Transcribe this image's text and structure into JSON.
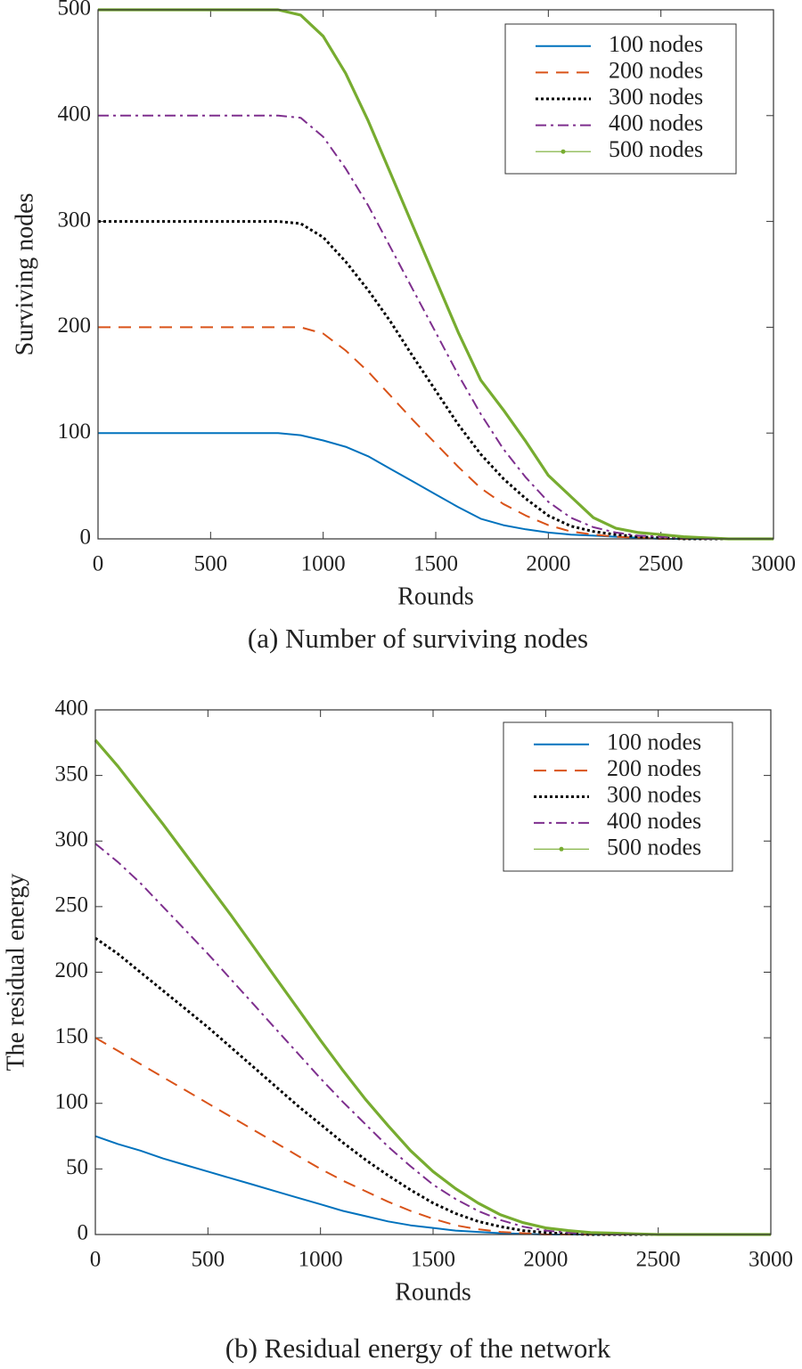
{
  "chart_data": [
    {
      "type": "line",
      "caption": "(a) Number of surviving nodes",
      "xlabel": "Rounds",
      "ylabel": "Surviving nodes",
      "x": [
        0,
        100,
        200,
        300,
        400,
        500,
        600,
        700,
        800,
        900,
        1000,
        1100,
        1200,
        1300,
        1400,
        1500,
        1600,
        1700,
        1800,
        1900,
        2000,
        2100,
        2200,
        2300,
        2400,
        2500,
        2600,
        2700,
        2800,
        2900,
        3000
      ],
      "xlim": [
        0,
        3000
      ],
      "xticks": [
        0,
        500,
        1000,
        1500,
        2000,
        2500,
        3000
      ],
      "ylim": [
        0,
        500
      ],
      "yticks": [
        0,
        100,
        200,
        300,
        400,
        500
      ],
      "legend": "upper right",
      "series": [
        {
          "name": "100 nodes",
          "color": "#0072bd",
          "dash": "solid",
          "values": [
            100,
            100,
            100,
            100,
            100,
            100,
            100,
            100,
            100,
            98,
            93,
            87,
            78,
            66,
            54,
            42,
            30,
            19,
            13,
            9,
            6,
            4,
            3,
            2,
            1,
            0,
            0,
            0,
            0,
            0,
            0
          ]
        },
        {
          "name": "200 nodes",
          "color": "#d95319",
          "dash": "dashed",
          "values": [
            200,
            200,
            200,
            200,
            200,
            200,
            200,
            200,
            200,
            200,
            194,
            178,
            158,
            135,
            112,
            90,
            68,
            48,
            33,
            22,
            13,
            7,
            4,
            2,
            1,
            0,
            0,
            0,
            0,
            0,
            0
          ]
        },
        {
          "name": "300 nodes",
          "color": "#000000",
          "dash": "dotted",
          "values": [
            300,
            300,
            300,
            300,
            300,
            300,
            300,
            300,
            300,
            298,
            285,
            262,
            235,
            205,
            172,
            140,
            108,
            80,
            57,
            38,
            22,
            12,
            7,
            4,
            2,
            1,
            0,
            0,
            0,
            0,
            0
          ]
        },
        {
          "name": "400 nodes",
          "color": "#7e2f8e",
          "dash": "dashdot",
          "values": [
            400,
            400,
            400,
            400,
            400,
            400,
            400,
            400,
            400,
            398,
            380,
            350,
            315,
            275,
            235,
            195,
            155,
            118,
            85,
            58,
            35,
            20,
            11,
            6,
            3,
            2,
            1,
            0,
            0,
            0,
            0
          ]
        },
        {
          "name": "500 nodes",
          "color": "#77ac30",
          "dash": "solid-marker",
          "values": [
            500,
            500,
            500,
            500,
            500,
            500,
            500,
            500,
            500,
            495,
            475,
            440,
            395,
            345,
            295,
            245,
            195,
            150,
            122,
            92,
            60,
            40,
            20,
            10,
            6,
            4,
            2,
            1,
            0,
            0,
            0
          ]
        }
      ]
    },
    {
      "type": "line",
      "caption": "(b) Residual energy of the network",
      "xlabel": "Rounds",
      "ylabel": "The residual energy",
      "x": [
        0,
        100,
        200,
        300,
        400,
        500,
        600,
        700,
        800,
        900,
        1000,
        1100,
        1200,
        1300,
        1400,
        1500,
        1600,
        1700,
        1800,
        1900,
        2000,
        2100,
        2200,
        2300,
        2400,
        2500,
        2600,
        2700,
        2800,
        2900,
        3000
      ],
      "xlim": [
        0,
        3000
      ],
      "xticks": [
        0,
        500,
        1000,
        1500,
        2000,
        2500,
        3000
      ],
      "ylim": [
        0,
        400
      ],
      "yticks": [
        0,
        50,
        100,
        150,
        200,
        250,
        300,
        350,
        400
      ],
      "legend": "upper right",
      "series": [
        {
          "name": "100 nodes",
          "color": "#0072bd",
          "dash": "solid",
          "values": [
            75,
            69,
            64,
            58,
            53,
            48,
            43,
            38,
            33,
            28,
            23,
            18,
            14,
            10,
            7,
            5,
            3,
            2,
            1,
            0.5,
            0,
            0,
            0,
            0,
            0,
            0,
            0,
            0,
            0,
            0,
            0
          ]
        },
        {
          "name": "200 nodes",
          "color": "#d95319",
          "dash": "dashed",
          "values": [
            150,
            140,
            130,
            120,
            110,
            100,
            90,
            80,
            70,
            60,
            50,
            41,
            33,
            25,
            18,
            12,
            7,
            4,
            2,
            1,
            0,
            0,
            0,
            0,
            0,
            0,
            0,
            0,
            0,
            0,
            0
          ]
        },
        {
          "name": "300 nodes",
          "color": "#000000",
          "dash": "dotted",
          "values": [
            226,
            214,
            200,
            186,
            172,
            158,
            143,
            128,
            113,
            98,
            84,
            70,
            57,
            45,
            34,
            24,
            16,
            10,
            6,
            3,
            1.5,
            0.5,
            0,
            0,
            0,
            0,
            0,
            0,
            0,
            0,
            0
          ]
        },
        {
          "name": "400 nodes",
          "color": "#7e2f8e",
          "dash": "dashdot",
          "values": [
            298,
            284,
            268,
            250,
            232,
            214,
            195,
            176,
            157,
            138,
            119,
            101,
            84,
            67,
            52,
            38,
            27,
            18,
            11,
            6,
            3,
            1.5,
            0.5,
            0,
            0,
            0,
            0,
            0,
            0,
            0,
            0
          ]
        },
        {
          "name": "500 nodes",
          "color": "#77ac30",
          "dash": "solid-marker",
          "values": [
            377,
            357,
            335,
            313,
            290,
            267,
            244,
            220,
            196,
            172,
            148,
            125,
            103,
            83,
            64,
            48,
            35,
            24,
            15,
            9,
            5,
            3,
            1.5,
            1,
            0.5,
            0,
            0,
            0,
            0,
            0,
            0
          ]
        }
      ]
    }
  ]
}
